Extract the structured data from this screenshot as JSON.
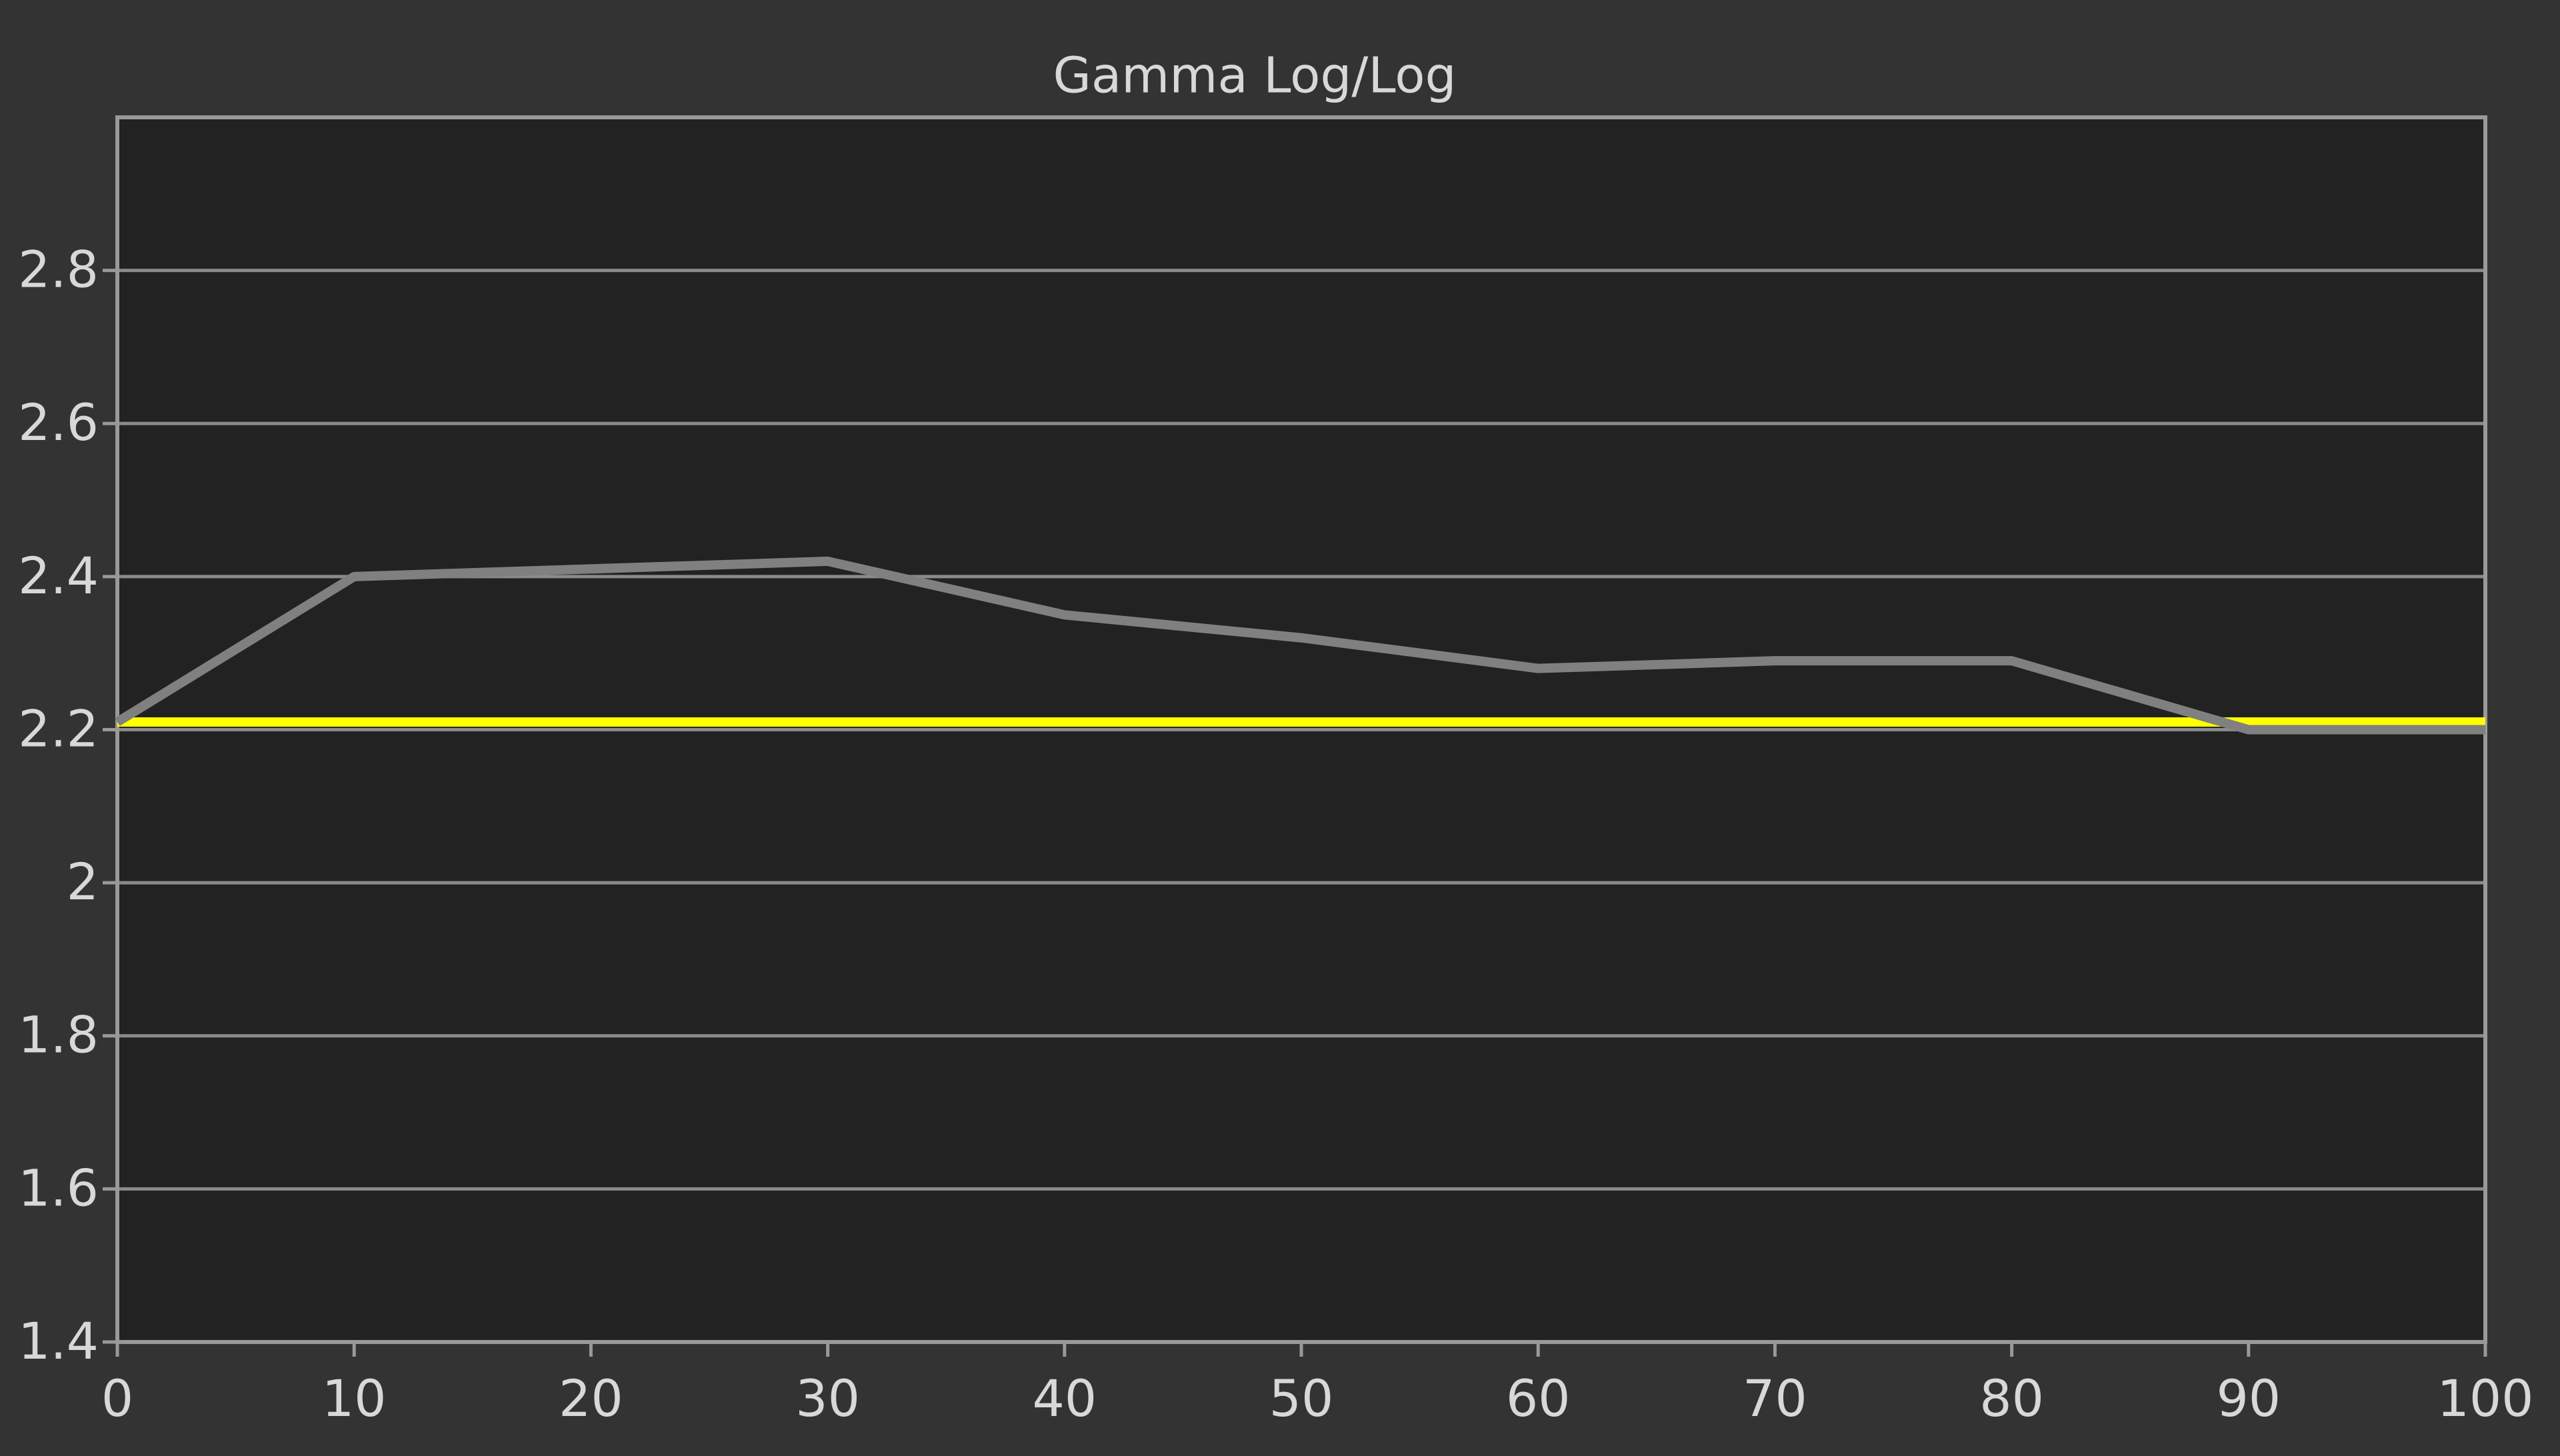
{
  "chart_data": {
    "type": "line",
    "title": "Gamma Log/Log",
    "x": [
      0,
      10,
      20,
      30,
      40,
      50,
      60,
      70,
      80,
      90,
      100
    ],
    "series": [
      {
        "color": "#ffff00",
        "values": [
          2.21,
          2.21,
          2.21,
          2.21,
          2.21,
          2.21,
          2.21,
          2.21,
          2.21,
          2.21,
          2.21
        ]
      },
      {
        "color": "#808080",
        "values": [
          2.21,
          2.4,
          2.41,
          2.42,
          2.35,
          2.32,
          2.28,
          2.29,
          2.29,
          2.2,
          2.2
        ]
      }
    ],
    "xlim": [
      0,
      100
    ],
    "xticks": [
      0,
      10,
      20,
      30,
      40,
      50,
      60,
      70,
      80,
      90,
      100
    ],
    "ylim": [
      1.4,
      3.0
    ],
    "yticks": [
      1.4,
      1.6,
      1.8,
      2,
      2.2,
      2.4,
      2.6,
      2.8
    ],
    "grid": true
  }
}
